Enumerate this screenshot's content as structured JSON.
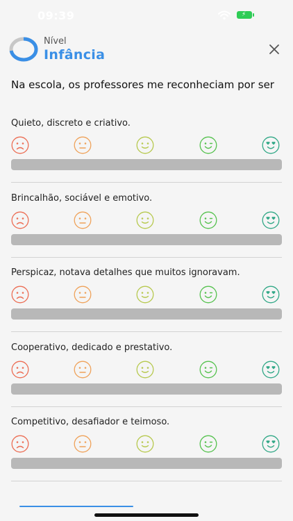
{
  "status_bar": {
    "time": "09:39"
  },
  "header": {
    "caption": "Nível",
    "level": "Infância"
  },
  "question": "Na escola, os professores me reconheciam por ser",
  "face_colors": [
    "#ec6e55",
    "#efa25a",
    "#b7c94f",
    "#56c24f",
    "#32a887"
  ],
  "face_icons": [
    "sad-face-icon",
    "neutral-face-icon",
    "smile-face-icon",
    "wink-face-icon",
    "heart-eyes-face-icon"
  ],
  "statements": [
    {
      "text": "Quieto, discreto e criativo."
    },
    {
      "text": "Brincalhão, sociável e emotivo."
    },
    {
      "text": "Perspicaz, notava detalhes que muitos ignoravam."
    },
    {
      "text": "Cooperativo, dedicado e prestativo."
    },
    {
      "text": "Competitivo, desafiador e teimoso."
    }
  ]
}
